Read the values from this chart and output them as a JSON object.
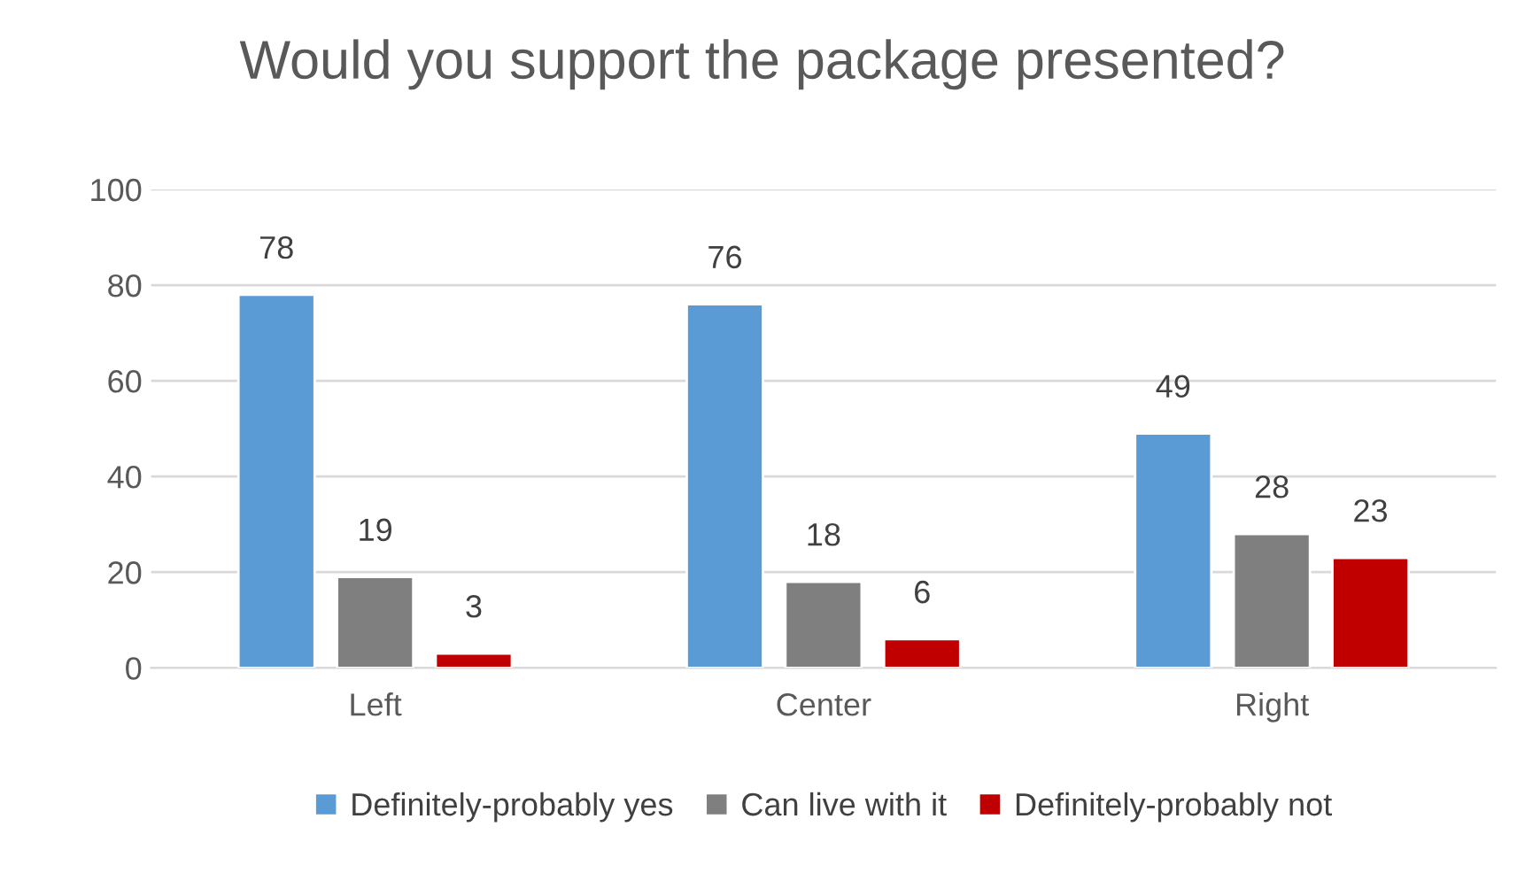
{
  "chart_data": {
    "type": "bar",
    "title": "Would you support the package presented?",
    "categories": [
      "Left",
      "Center",
      "Right"
    ],
    "series": [
      {
        "name": "Definitely-probably yes",
        "color": "#5b9bd5",
        "values": [
          78,
          76,
          49
        ]
      },
      {
        "name": "Can live with it",
        "color": "#7f7f7f",
        "values": [
          19,
          18,
          28
        ]
      },
      {
        "name": "Definitely-probably not",
        "color": "#c00000",
        "values": [
          3,
          6,
          23
        ]
      }
    ],
    "ylim": [
      0,
      100
    ],
    "yticks": [
      0,
      20,
      40,
      60,
      80,
      100
    ],
    "grid": "y",
    "legend": "bottom",
    "data_labels": true
  }
}
